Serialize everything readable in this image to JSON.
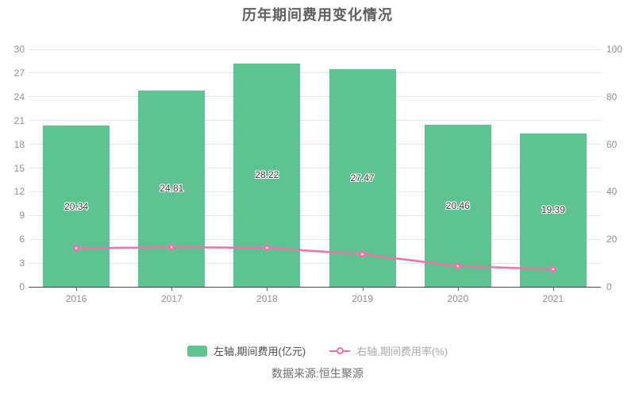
{
  "title": "历年期间费用变化情况",
  "source": "数据来源:恒生聚源",
  "colors": {
    "bar": "#5ec291",
    "line": "#ec74a8",
    "grid": "#e0e6f2",
    "axis_line": "#4d4d4d",
    "tick_label": "#909090",
    "bar_value_label": "#3c3c3c"
  },
  "legend": {
    "position": "bottom",
    "items": [
      {
        "label": "左轴,期间费用(亿元)",
        "marker": "bar-swatch",
        "color": "#5ec291"
      },
      {
        "label": "右轴,期间费用率(%)",
        "marker": "line-circle-marker",
        "color": "#ec74a8"
      }
    ]
  },
  "chart_data": {
    "type": "bar",
    "title": "历年期间费用变化情况",
    "categories": [
      "2016",
      "2017",
      "2018",
      "2019",
      "2020",
      "2021"
    ],
    "series": [
      {
        "name": "左轴,期间费用(亿元)",
        "type": "bar",
        "axis": "left",
        "color": "#5ec291",
        "values": [
          20.34,
          24.81,
          28.22,
          27.47,
          20.46,
          19.39
        ],
        "value_labels_shown": true
      },
      {
        "name": "右轴,期间费用率(%)",
        "type": "line",
        "axis": "right",
        "color": "#ec74a8",
        "values": [
          16.2,
          16.7,
          16.4,
          13.7,
          8.7,
          7.4
        ],
        "value_labels_shown": false
      }
    ],
    "left_axis": {
      "min": 0,
      "max": 30,
      "step": 3
    },
    "right_axis": {
      "min": 0,
      "max": 100,
      "step": 20
    },
    "grid": true,
    "legend_position": "bottom"
  }
}
